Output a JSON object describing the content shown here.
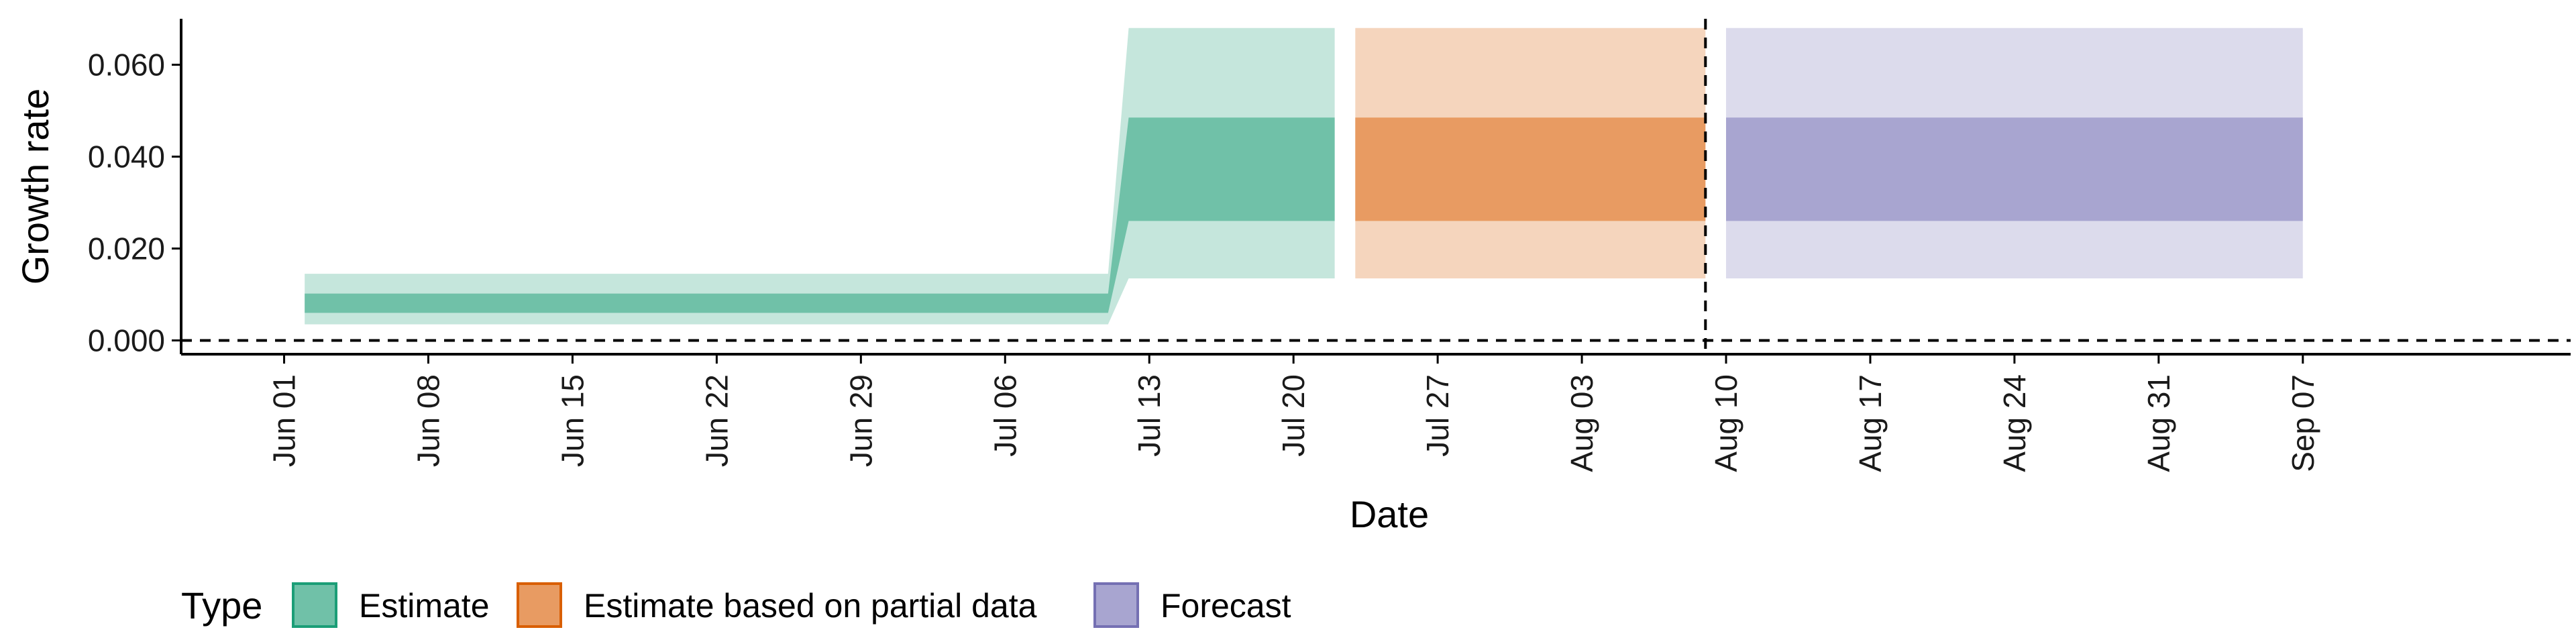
{
  "chart_data": {
    "type": "area",
    "title": "",
    "xlabel": "Date",
    "ylabel": "Growth rate",
    "x_axis_type": "date",
    "xlim": [
      "2020-05-27",
      "2020-09-20"
    ],
    "ylim": [
      -0.003,
      0.07
    ],
    "x_ticks": [
      {
        "date": "2020-06-01",
        "label": "Jun 01"
      },
      {
        "date": "2020-06-08",
        "label": "Jun 08"
      },
      {
        "date": "2020-06-15",
        "label": "Jun 15"
      },
      {
        "date": "2020-06-22",
        "label": "Jun 22"
      },
      {
        "date": "2020-06-29",
        "label": "Jun 29"
      },
      {
        "date": "2020-07-06",
        "label": "Jul 06"
      },
      {
        "date": "2020-07-13",
        "label": "Jul 13"
      },
      {
        "date": "2020-07-20",
        "label": "Jul 20"
      },
      {
        "date": "2020-07-27",
        "label": "Jul 27"
      },
      {
        "date": "2020-08-03",
        "label": "Aug 03"
      },
      {
        "date": "2020-08-10",
        "label": "Aug 10"
      },
      {
        "date": "2020-08-17",
        "label": "Aug 17"
      },
      {
        "date": "2020-08-24",
        "label": "Aug 24"
      },
      {
        "date": "2020-08-31",
        "label": "Aug 31"
      },
      {
        "date": "2020-09-07",
        "label": "Sep 07"
      }
    ],
    "y_ticks": [
      {
        "value": 0.0,
        "label": "0.000"
      },
      {
        "value": 0.02,
        "label": "0.020"
      },
      {
        "value": 0.04,
        "label": "0.040"
      },
      {
        "value": 0.06,
        "label": "0.060"
      }
    ],
    "reference_lines": [
      {
        "axis": "y",
        "value": 0.0,
        "style": "dashed"
      },
      {
        "axis": "x",
        "value": "2020-08-09",
        "style": "dashed"
      }
    ],
    "grid": false,
    "legend": {
      "title": "Type",
      "placement": "bottom-left",
      "items": [
        {
          "label": "Estimate",
          "fill": "#70c1a8",
          "stroke": "#1b9e77"
        },
        {
          "label": "Estimate based on partial data",
          "fill": "#e89b62",
          "stroke": "#d95f02"
        },
        {
          "label": "Forecast",
          "fill": "#a8a5d0",
          "stroke": "#7570b3"
        }
      ]
    },
    "series": [
      {
        "name": "Estimate",
        "fill_inner": "#70c1a8",
        "fill_outer": "#c5e6dc",
        "points": [
          {
            "date": "2020-06-02",
            "lower_90": 0.0035,
            "lower_50": 0.006,
            "upper_50": 0.0102,
            "upper_90": 0.0145
          },
          {
            "date": "2020-07-11",
            "lower_90": 0.0035,
            "lower_50": 0.006,
            "upper_50": 0.0102,
            "upper_90": 0.0145
          },
          {
            "date": "2020-07-12",
            "lower_90": 0.0135,
            "lower_50": 0.026,
            "upper_50": 0.0485,
            "upper_90": 0.068
          },
          {
            "date": "2020-07-22",
            "lower_90": 0.0135,
            "lower_50": 0.026,
            "upper_50": 0.0485,
            "upper_90": 0.068
          }
        ]
      },
      {
        "name": "Estimate based on partial data",
        "fill_inner": "#e89b62",
        "fill_outer": "#f5d5bd",
        "points": [
          {
            "date": "2020-07-23",
            "lower_90": 0.0135,
            "lower_50": 0.026,
            "upper_50": 0.0485,
            "upper_90": 0.068
          },
          {
            "date": "2020-08-09",
            "lower_90": 0.0135,
            "lower_50": 0.026,
            "upper_50": 0.0485,
            "upper_90": 0.068
          }
        ]
      },
      {
        "name": "Forecast",
        "fill_inner": "#a8a5d0",
        "fill_outer": "#dcdbec",
        "points": [
          {
            "date": "2020-08-10",
            "lower_90": 0.0135,
            "lower_50": 0.026,
            "upper_50": 0.0485,
            "upper_90": 0.068
          },
          {
            "date": "2020-09-07",
            "lower_90": 0.0135,
            "lower_50": 0.026,
            "upper_50": 0.0485,
            "upper_90": 0.068
          }
        ]
      }
    ]
  }
}
